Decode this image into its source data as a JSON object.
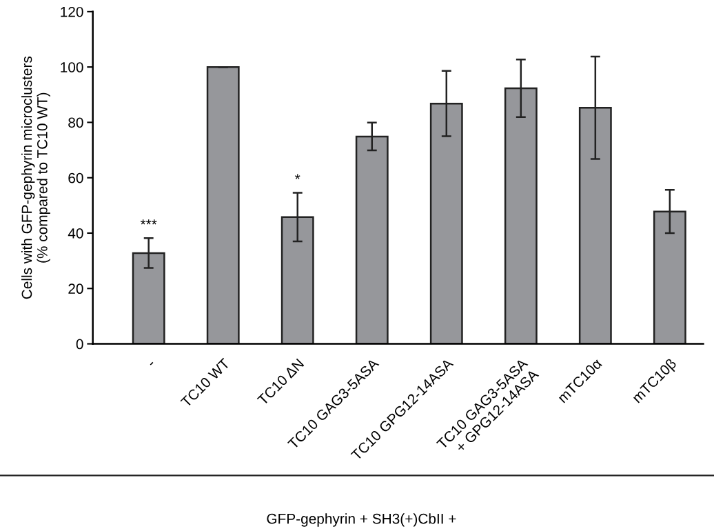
{
  "chart_data": {
    "type": "bar",
    "categories": [
      "-",
      "TC10 WT",
      "TC10 ΔN",
      "TC10 GAG3-5ASA",
      "TC10 GPG12-14ASA",
      "TC10 GAG3-5ASA\n+ GPG12-14ASA",
      "mTC10α",
      "mTC10β"
    ],
    "values": [
      32.8,
      100,
      45.8,
      74.9,
      86.8,
      92.3,
      85.3,
      47.8
    ],
    "errors": [
      5.4,
      0,
      8.8,
      5,
      11.8,
      10.4,
      18.5,
      7.8
    ],
    "color": "#96979b",
    "ylabel": "Cells with GFP-gephyrin microclusters\n(% compared to TC10 WT)",
    "xlabel": "GFP-gephyrin + SH3(+)CbII +",
    "ylim": [
      0,
      120
    ],
    "yticks": [
      0,
      20,
      40,
      60,
      80,
      100,
      120
    ],
    "annotations": [
      {
        "text": "***",
        "x": "-",
        "y": 38.2
      },
      {
        "text": "*",
        "x": "TC10 ΔN",
        "y": 54.6
      }
    ],
    "grid": false
  }
}
